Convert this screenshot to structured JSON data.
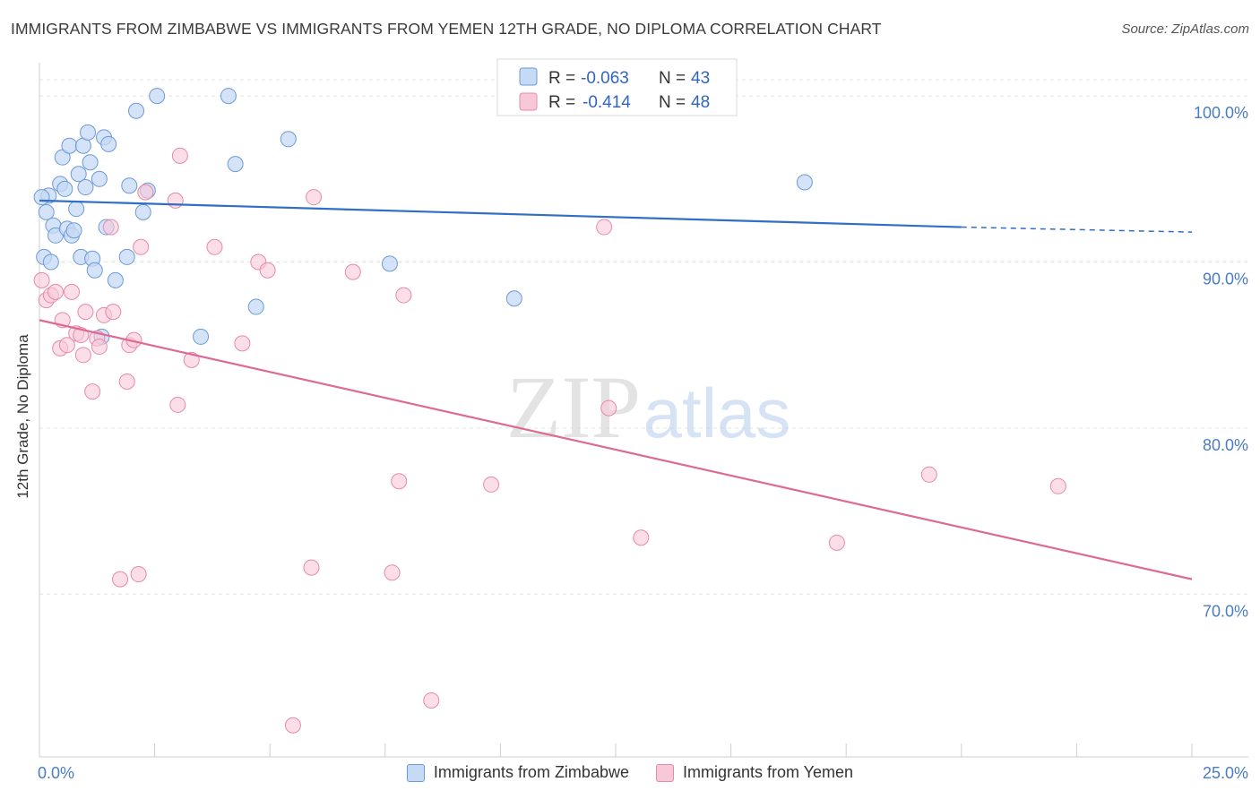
{
  "title": "IMMIGRANTS FROM ZIMBABWE VS IMMIGRANTS FROM YEMEN 12TH GRADE, NO DIPLOMA CORRELATION CHART",
  "source": "Source: ZipAtlas.com",
  "watermark": {
    "part1": "ZIP",
    "part2": "atlas"
  },
  "colors": {
    "zimbabwe_fill": "#c5daf4",
    "zimbabwe_stroke": "#6d9ad6",
    "zimbabwe_line": "#2f6fc6",
    "yemen_fill": "#f8c8d8",
    "yemen_stroke": "#e68aa8",
    "yemen_line": "#de6a94",
    "tick_text": "#4a7cc4"
  },
  "chart_data": {
    "type": "scatter",
    "title": "IMMIGRANTS FROM ZIMBABWE VS IMMIGRANTS FROM YEMEN 12TH GRADE, NO DIPLOMA CORRELATION CHART",
    "xlabel": "",
    "ylabel": "12th Grade, No Diploma",
    "xlim": [
      0,
      25
    ],
    "ylim": [
      60.2,
      102
    ],
    "x_tick_labels": [
      "0.0%",
      "25.0%"
    ],
    "y_ticks": [
      70,
      80,
      90,
      100
    ],
    "y_tick_labels": [
      "70.0%",
      "80.0%",
      "90.0%",
      "100.0%"
    ],
    "grid": true,
    "legend": {
      "position": "top-center",
      "rows": [
        {
          "r_label": "R =",
          "r_value": "-0.063",
          "n_label": "N =",
          "n_value": "43"
        },
        {
          "r_label": "R =",
          "r_value": "-0.414",
          "n_label": "N =",
          "n_value": "48"
        }
      ]
    },
    "series": [
      {
        "name": "Immigrants from Zimbabwe",
        "trend": {
          "x": [
            0,
            20
          ],
          "y": [
            93.7,
            92.1
          ],
          "dashed_extension": {
            "x": [
              20,
              25
            ],
            "y": [
              92.1,
              91.8
            ]
          }
        },
        "points": [
          [
            0.1,
            90.3
          ],
          [
            0.15,
            93.0
          ],
          [
            0.2,
            94.0
          ],
          [
            0.3,
            92.2
          ],
          [
            0.35,
            91.6
          ],
          [
            0.45,
            94.7
          ],
          [
            0.5,
            96.3
          ],
          [
            0.55,
            94.4
          ],
          [
            0.6,
            92.0
          ],
          [
            0.65,
            97.0
          ],
          [
            0.7,
            91.6
          ],
          [
            0.75,
            91.9
          ],
          [
            0.8,
            93.2
          ],
          [
            0.85,
            95.3
          ],
          [
            0.9,
            90.3
          ],
          [
            0.95,
            97.0
          ],
          [
            1.0,
            94.5
          ],
          [
            1.05,
            97.8
          ],
          [
            1.1,
            96.0
          ],
          [
            1.15,
            90.2
          ],
          [
            1.2,
            89.5
          ],
          [
            1.3,
            95.0
          ],
          [
            1.4,
            97.5
          ],
          [
            1.45,
            92.1
          ],
          [
            1.5,
            97.1
          ],
          [
            1.65,
            88.9
          ],
          [
            1.9,
            90.3
          ],
          [
            1.95,
            94.6
          ],
          [
            2.1,
            99.1
          ],
          [
            2.25,
            93.0
          ],
          [
            2.35,
            94.3
          ],
          [
            2.55,
            100.0
          ],
          [
            3.5,
            85.5
          ],
          [
            4.1,
            100.0
          ],
          [
            4.25,
            95.9
          ],
          [
            4.7,
            87.3
          ],
          [
            5.4,
            97.4
          ],
          [
            7.6,
            89.9
          ],
          [
            10.3,
            87.8
          ],
          [
            16.6,
            94.8
          ],
          [
            0.05,
            93.9
          ],
          [
            1.35,
            85.5
          ],
          [
            0.25,
            90.0
          ]
        ]
      },
      {
        "name": "Immigrants from Yemen",
        "trend": {
          "x": [
            0,
            25
          ],
          "y": [
            86.5,
            70.9
          ]
        },
        "points": [
          [
            0.05,
            88.9
          ],
          [
            0.15,
            87.7
          ],
          [
            0.25,
            88.0
          ],
          [
            0.35,
            88.2
          ],
          [
            0.45,
            84.8
          ],
          [
            0.5,
            86.5
          ],
          [
            0.6,
            85.0
          ],
          [
            0.7,
            88.2
          ],
          [
            0.8,
            85.7
          ],
          [
            0.9,
            85.6
          ],
          [
            0.95,
            84.4
          ],
          [
            1.0,
            87.0
          ],
          [
            1.15,
            82.2
          ],
          [
            1.25,
            85.4
          ],
          [
            1.3,
            84.9
          ],
          [
            1.4,
            86.8
          ],
          [
            1.55,
            92.1
          ],
          [
            1.6,
            87.0
          ],
          [
            1.75,
            70.9
          ],
          [
            1.9,
            82.8
          ],
          [
            1.95,
            85.0
          ],
          [
            2.05,
            85.3
          ],
          [
            2.15,
            71.2
          ],
          [
            2.2,
            90.9
          ],
          [
            2.3,
            94.2
          ],
          [
            2.95,
            93.7
          ],
          [
            3.0,
            81.4
          ],
          [
            3.05,
            96.4
          ],
          [
            3.3,
            84.1
          ],
          [
            3.8,
            90.9
          ],
          [
            4.4,
            85.1
          ],
          [
            4.75,
            90.0
          ],
          [
            4.95,
            89.5
          ],
          [
            5.5,
            62.1
          ],
          [
            5.9,
            71.6
          ],
          [
            5.95,
            93.9
          ],
          [
            6.8,
            89.4
          ],
          [
            7.65,
            71.3
          ],
          [
            7.8,
            76.8
          ],
          [
            7.9,
            88.0
          ],
          [
            8.5,
            63.6
          ],
          [
            9.8,
            76.6
          ],
          [
            12.25,
            92.1
          ],
          [
            12.35,
            81.2
          ],
          [
            13.05,
            73.4
          ],
          [
            17.3,
            73.1
          ],
          [
            19.3,
            77.2
          ],
          [
            22.1,
            76.5
          ]
        ]
      }
    ]
  }
}
